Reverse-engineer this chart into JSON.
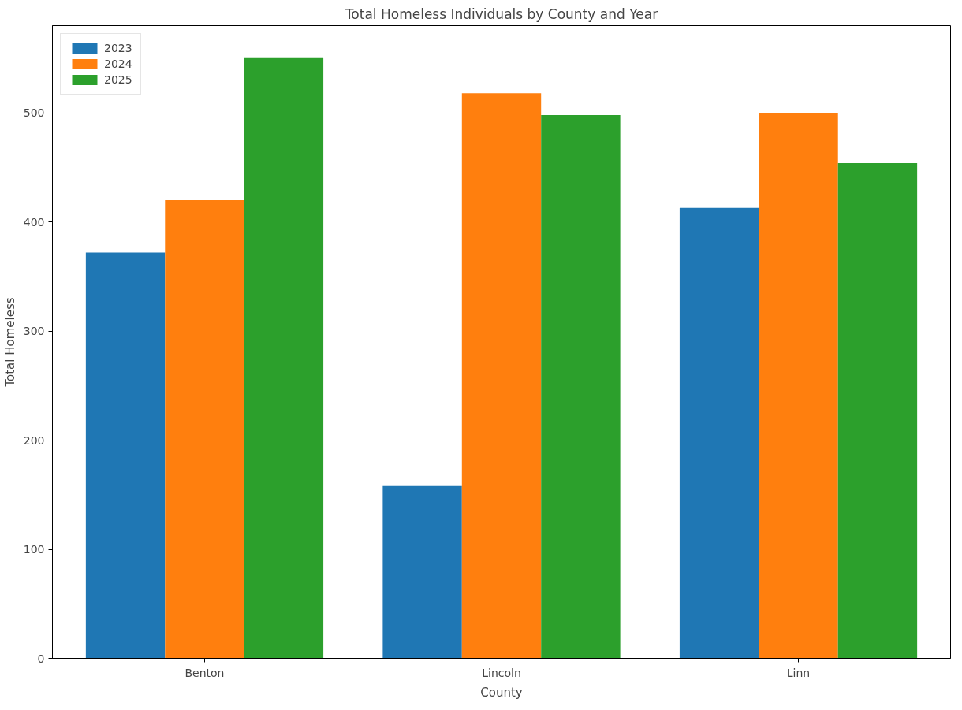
{
  "chart_data": {
    "type": "bar",
    "title": "Total Homeless Individuals by County and Year",
    "xlabel": "County",
    "ylabel": "Total Homeless",
    "categories": [
      "Benton",
      "Lincoln",
      "Linn"
    ],
    "series": [
      {
        "name": "2023",
        "color": "#1f77b4",
        "values": [
          372,
          158,
          413
        ]
      },
      {
        "name": "2024",
        "color": "#ff7f0e",
        "values": [
          420,
          518,
          500
        ]
      },
      {
        "name": "2025",
        "color": "#2ca02c",
        "values": [
          551,
          498,
          454
        ]
      }
    ],
    "ylim": [
      0,
      580
    ],
    "yticks": [
      0,
      100,
      200,
      300,
      400,
      500
    ],
    "grid": false,
    "legend": "top left"
  }
}
